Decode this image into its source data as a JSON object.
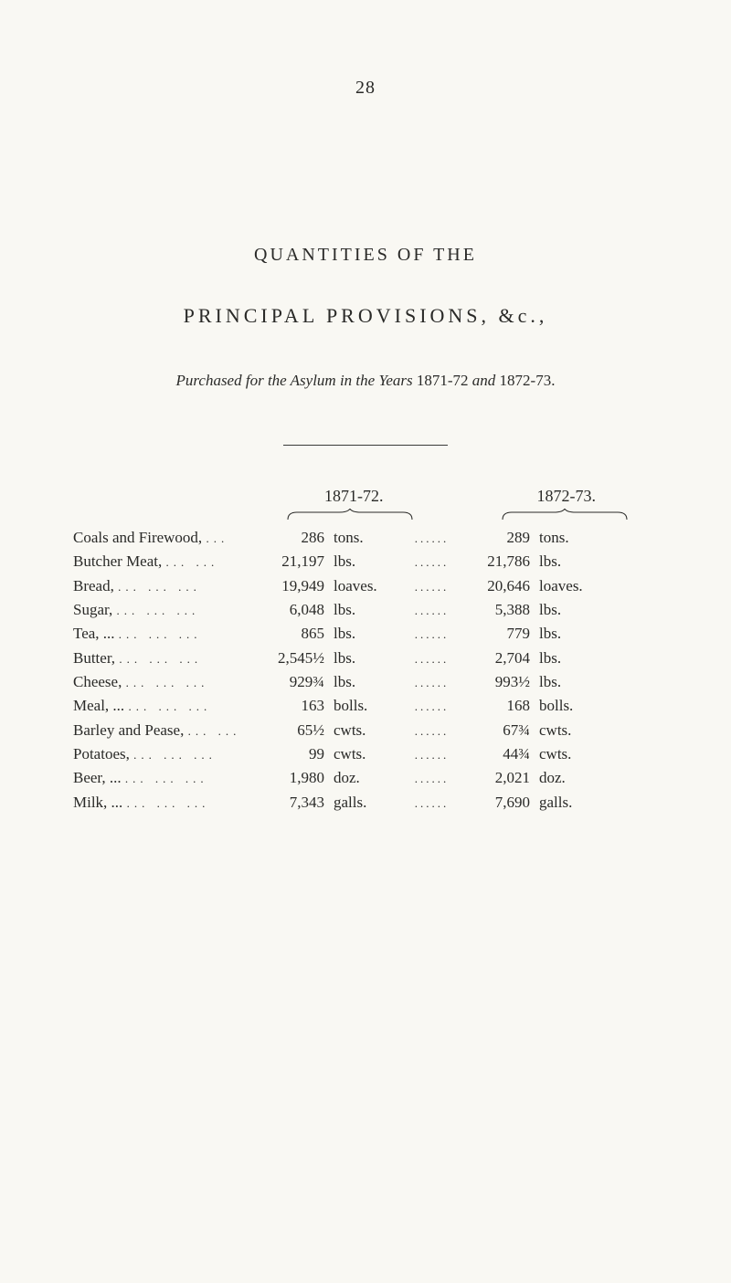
{
  "page_number": "28",
  "title_main": "QUANTITIES OF THE",
  "title_sub": "PRINCIPAL PROVISIONS, &c.,",
  "subtitle_italic_1": "Purchased for the Asylum in the Years",
  "subtitle_regular_1": "1871-72",
  "subtitle_italic_2": "and",
  "subtitle_regular_2": "1872-73.",
  "year_left": "1871-72.",
  "year_right": "1872-73.",
  "rows": [
    {
      "name": "Coals and Firewood,",
      "trail": "...",
      "val_l": "286",
      "unit_l": "tons.",
      "val_r": "289",
      "unit_r": "tons."
    },
    {
      "name": "Butcher Meat,",
      "trail": "...   ...",
      "val_l": "21,197",
      "unit_l": "lbs.",
      "val_r": "21,786",
      "unit_r": "lbs."
    },
    {
      "name": "Bread,",
      "trail": "...   ...   ...",
      "val_l": "19,949",
      "unit_l": "loaves.",
      "val_r": "20,646",
      "unit_r": "loaves."
    },
    {
      "name": "Sugar,",
      "trail": "...   ...   ...",
      "val_l": "6,048",
      "unit_l": "lbs.",
      "val_r": "5,388",
      "unit_r": "lbs."
    },
    {
      "name": "Tea,   ...",
      "trail": "...   ...   ...",
      "val_l": "865",
      "unit_l": "lbs.",
      "val_r": "779",
      "unit_r": "lbs."
    },
    {
      "name": "Butter,",
      "trail": "...   ...   ...",
      "val_l": "2,545½",
      "unit_l": "lbs.",
      "val_r": "2,704",
      "unit_r": "lbs."
    },
    {
      "name": "Cheese,",
      "trail": "...   ...   ...",
      "val_l": "929¾",
      "unit_l": "lbs.",
      "val_r": "993½",
      "unit_r": "lbs."
    },
    {
      "name": "Meal,  ...",
      "trail": "...   ...   ...",
      "val_l": "163",
      "unit_l": "bolls.",
      "val_r": "168",
      "unit_r": "bolls."
    },
    {
      "name": "Barley and Pease,",
      "trail": "...   ...",
      "val_l": "65½",
      "unit_l": "cwts.",
      "val_r": "67¾",
      "unit_r": "cwts."
    },
    {
      "name": "Potatoes,",
      "trail": "...   ...   ...",
      "val_l": "99",
      "unit_l": "cwts.",
      "val_r": "44¾",
      "unit_r": "cwts."
    },
    {
      "name": "Beer,  ...",
      "trail": "...   ...   ...",
      "val_l": "1,980",
      "unit_l": "doz.",
      "val_r": "2,021",
      "unit_r": "doz."
    },
    {
      "name": "Milk,  ...",
      "trail": "...   ...   ...",
      "val_l": "7,343",
      "unit_l": "galls.",
      "val_r": "7,690",
      "unit_r": "galls."
    }
  ],
  "middle_dots": "......",
  "colors": {
    "background": "#f9f8f3",
    "text": "#2a2a28",
    "divider": "#3a3a38"
  },
  "typography": {
    "body_font_size": 17,
    "title_font_size": 20,
    "subtitle_font_size": 17,
    "page_num_font_size": 20
  }
}
